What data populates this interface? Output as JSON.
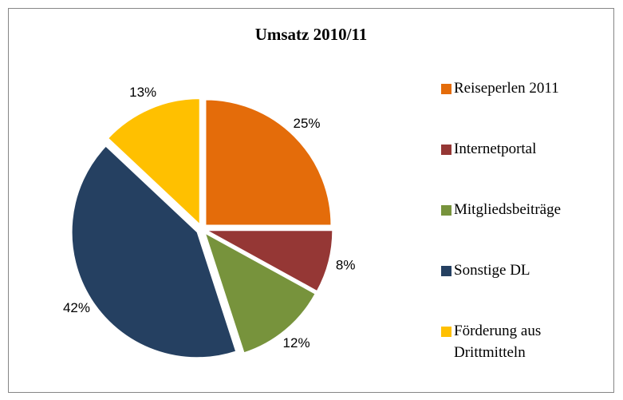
{
  "chart_data": {
    "type": "pie",
    "title": "Umsatz 2010/11",
    "categories": [
      "Reiseperlen 2011",
      "Internetportal",
      "Mitgliedsbeiträge",
      "Sonstige DL",
      "Förderung aus Drittmitteln"
    ],
    "values": [
      25,
      8,
      12,
      42,
      13
    ],
    "value_labels": [
      "25%",
      "8%",
      "12%",
      "42%",
      "13%"
    ],
    "colors": [
      "#e46c0a",
      "#953735",
      "#77933c",
      "#254061",
      "#ffc000"
    ],
    "legend": "right"
  }
}
